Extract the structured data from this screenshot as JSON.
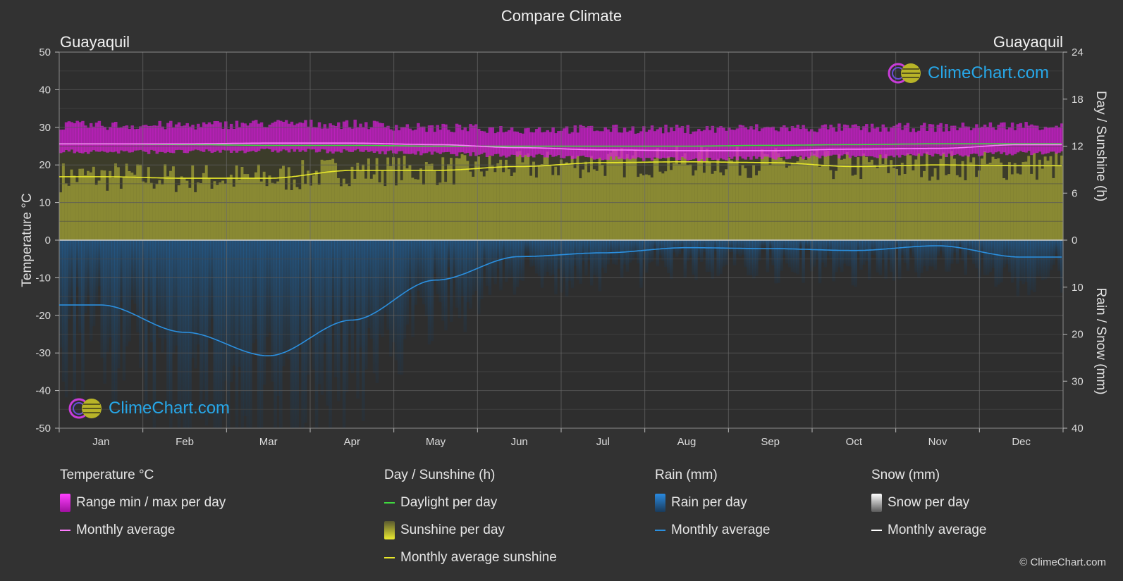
{
  "title": "Compare Climate",
  "location_left": "Guayaquil",
  "location_right": "Guayaquil",
  "watermark": "ClimeChart.com",
  "copyright": "© ClimeChart.com",
  "colors": {
    "background": "#323232",
    "temp_range": "#d81ed8",
    "temp_avg": "#ff7bff",
    "daylight": "#3fd83f",
    "sunshine": "#c9c93a",
    "sunshine_avg": "#e8e82a",
    "rain": "#1d74c0",
    "rain_avg": "#2b90e0",
    "snow_avg": "#ffffff"
  },
  "legend": {
    "temperature": {
      "title": "Temperature °C",
      "range": "Range min / max per day",
      "avg": "Monthly average"
    },
    "sunshine": {
      "title": "Day / Sunshine (h)",
      "daylight": "Daylight per day",
      "sunshine": "Sunshine per day",
      "avg": "Monthly average sunshine"
    },
    "rain": {
      "title": "Rain (mm)",
      "per_day": "Rain per day",
      "avg": "Monthly average"
    },
    "snow": {
      "title": "Snow (mm)",
      "per_day": "Snow per day",
      "avg": "Monthly average"
    }
  },
  "chart_data": {
    "type": "line",
    "title": "Compare Climate",
    "months": [
      "Jan",
      "Feb",
      "Mar",
      "Apr",
      "May",
      "Jun",
      "Jul",
      "Aug",
      "Sep",
      "Oct",
      "Nov",
      "Dec"
    ],
    "y_left": {
      "label": "Temperature °C",
      "min": -50,
      "max": 50,
      "ticks": [
        50,
        40,
        30,
        20,
        10,
        0,
        -10,
        -20,
        -30,
        -40,
        -50
      ]
    },
    "y_right_top": {
      "label": "Day / Sunshine (h)",
      "min": 0,
      "max": 24,
      "ticks": [
        24,
        18,
        12,
        6,
        0
      ]
    },
    "y_right_bottom": {
      "label": "Rain / Snow (mm)",
      "min": 0,
      "max": 40,
      "ticks": [
        0,
        10,
        20,
        30,
        40
      ]
    },
    "series": [
      {
        "name": "Temperature range min per day",
        "values": [
          23.5,
          23.5,
          23.8,
          23.6,
          23.0,
          22.5,
          21.8,
          21.5,
          21.8,
          22.3,
          22.5,
          23.2
        ]
      },
      {
        "name": "Temperature range max per day",
        "values": [
          30.5,
          30.5,
          31.0,
          30.8,
          29.8,
          29.5,
          29.5,
          29.5,
          29.8,
          29.8,
          30.0,
          30.5
        ]
      },
      {
        "name": "Temperature monthly average",
        "values": [
          25.6,
          25.6,
          25.8,
          25.8,
          25.4,
          24.6,
          24.0,
          23.8,
          23.8,
          24.2,
          24.4,
          25.4
        ]
      },
      {
        "name": "Daylight per day",
        "values": [
          12.3,
          12.2,
          12.1,
          12.1,
          12.0,
          12.0,
          12.0,
          12.0,
          12.1,
          12.2,
          12.3,
          12.3
        ]
      },
      {
        "name": "Monthly average sunshine",
        "values": [
          8.1,
          7.9,
          7.9,
          8.9,
          8.9,
          9.4,
          9.9,
          10.0,
          9.9,
          9.4,
          9.6,
          9.5
        ]
      },
      {
        "name": "Rain monthly average",
        "values": [
          13.8,
          19.6,
          24.6,
          17.0,
          8.5,
          3.5,
          2.7,
          1.6,
          1.8,
          2.2,
          1.2,
          3.6
        ]
      },
      {
        "name": "Snow monthly average",
        "values": [
          0,
          0,
          0,
          0,
          0,
          0,
          0,
          0,
          0,
          0,
          0,
          0
        ]
      }
    ]
  }
}
